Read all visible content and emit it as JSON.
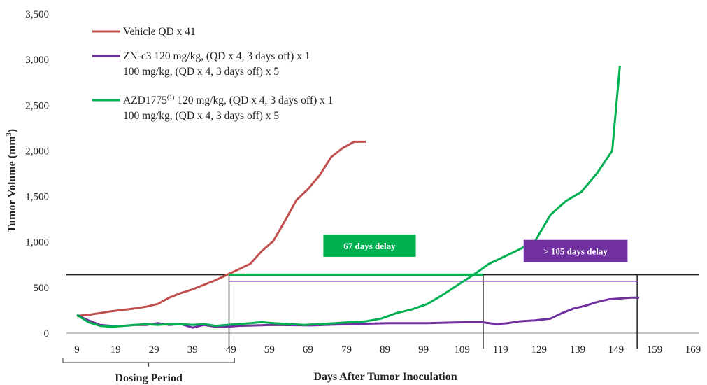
{
  "chart_data": {
    "type": "line",
    "ylabel": "Tumor Volume (mm",
    "ylabel_sup": "3",
    "ylabel_end": ")",
    "xlabel": "Days After Tumor Inoculation",
    "dosing_label": "Dosing Period",
    "xlim": [
      9,
      169
    ],
    "ylim": [
      0,
      3500
    ],
    "x_ticks": [
      9,
      19,
      29,
      39,
      49,
      59,
      69,
      79,
      89,
      99,
      109,
      119,
      129,
      139,
      149,
      159,
      169
    ],
    "y_ticks": [
      {
        "value": 0,
        "label": "0"
      },
      {
        "value": 500,
        "label": "500"
      },
      {
        "value": 1000,
        "label": "1,000"
      },
      {
        "value": 1500,
        "label": "1,500"
      },
      {
        "value": 2000,
        "label": "2,000"
      },
      {
        "value": 2500,
        "label": "2,500"
      },
      {
        "value": 3000,
        "label": "3,000"
      },
      {
        "value": 3500,
        "label": "3,500"
      }
    ],
    "series": [
      {
        "name": "Vehicle QD x 41",
        "color": "#c0504d",
        "x": [
          9,
          12,
          15,
          18,
          21,
          24,
          27,
          30,
          33,
          36,
          39,
          42,
          45,
          48,
          51,
          54,
          57,
          60,
          63,
          66,
          69,
          72,
          75,
          78,
          81,
          84
        ],
        "y": [
          190,
          200,
          220,
          240,
          255,
          270,
          290,
          320,
          390,
          440,
          480,
          530,
          580,
          640,
          700,
          760,
          900,
          1010,
          1230,
          1460,
          1580,
          1730,
          1930,
          2030,
          2100,
          2100
        ]
      },
      {
        "name_lines": [
          "ZN-c3 120 mg/kg, (QD x 4, 3 days off) x 1",
          "100 mg/kg, (QD x 4, 3 days off) x 5"
        ],
        "color": "#7030a0",
        "x": [
          9,
          12,
          15,
          18,
          21,
          24,
          27,
          30,
          33,
          36,
          39,
          42,
          45,
          48,
          51,
          60,
          70,
          80,
          90,
          100,
          110,
          114,
          118,
          121,
          124,
          128,
          132,
          135,
          138,
          141,
          144,
          147,
          150,
          153,
          155
        ],
        "y": [
          200,
          140,
          90,
          80,
          80,
          90,
          90,
          110,
          90,
          100,
          60,
          90,
          70,
          70,
          80,
          90,
          85,
          100,
          110,
          110,
          120,
          120,
          100,
          110,
          130,
          140,
          160,
          220,
          270,
          300,
          340,
          370,
          380,
          390,
          390
        ]
      },
      {
        "name_lines": [
          "AZD1775",
          "(1)",
          " 120 mg/kg, (QD x 4, 3 days off) x 1",
          "100 mg/kg, (QD x 4, 3 days off) x 5"
        ],
        "color": "#00b050",
        "x": [
          9,
          12,
          15,
          18,
          21,
          24,
          27,
          30,
          33,
          36,
          39,
          42,
          45,
          48,
          51,
          54,
          57,
          60,
          64,
          68,
          72,
          76,
          80,
          84,
          88,
          92,
          96,
          100,
          104,
          108,
          112,
          116,
          120,
          124,
          128,
          132,
          136,
          140,
          144,
          148,
          150
        ],
        "y": [
          200,
          120,
          80,
          70,
          80,
          90,
          100,
          90,
          100,
          100,
          90,
          100,
          80,
          90,
          100,
          110,
          120,
          110,
          100,
          90,
          100,
          110,
          120,
          130,
          160,
          220,
          260,
          320,
          420,
          530,
          640,
          760,
          840,
          920,
          1010,
          1300,
          1450,
          1550,
          1750,
          2000,
          2930
        ]
      }
    ],
    "threshold_value": 640,
    "threshold_value_zn": 570,
    "markers_x": [
      48.5,
      114.5,
      154.5
    ],
    "delays": [
      {
        "label": "67 days delay",
        "color": "#00b050",
        "x_start": 73,
        "x_end": 97,
        "y": 960
      },
      {
        "label": "> 105 days delay",
        "color": "#7030a0",
        "x_start": 125,
        "x_end": 152,
        "y": 900
      }
    ],
    "dosing_range": [
      9,
      49
    ]
  }
}
